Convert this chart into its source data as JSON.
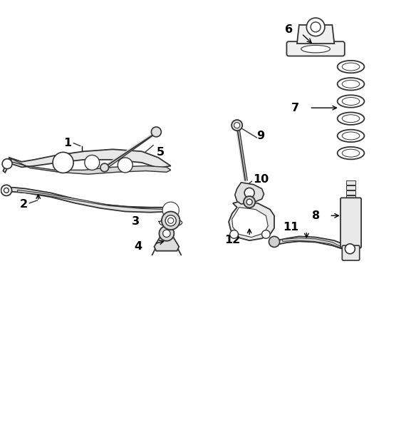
{
  "bg_color": "#ffffff",
  "line_color": "#333333",
  "label_color": "#000000",
  "figsize": [
    5.84,
    5.93
  ],
  "dpi": 100
}
